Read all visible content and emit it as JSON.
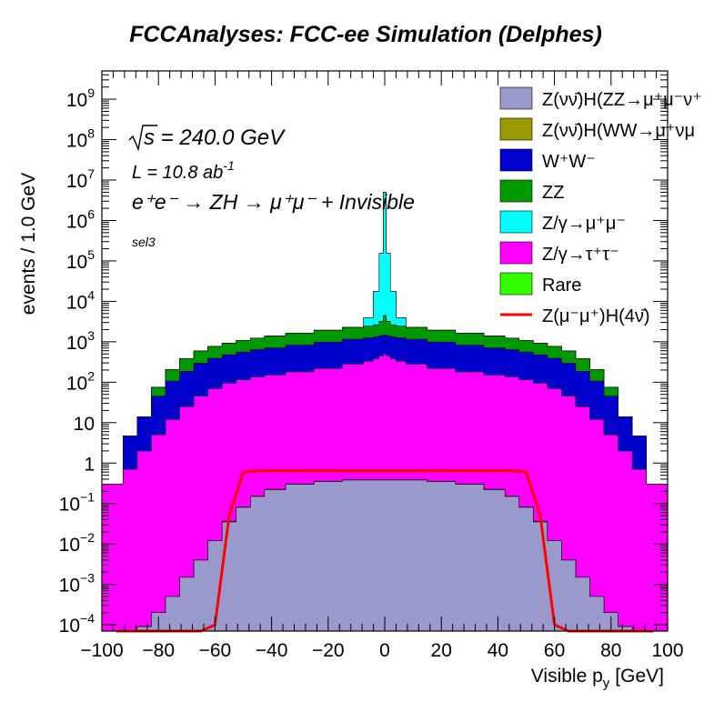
{
  "chart_data": {
    "type": "area",
    "title": "FCCAnalyses: FCC-ee Simulation (Delphes)",
    "xlabel": "Visible p",
    "xlabel_sub": "y",
    "xlabel_unit": "[GeV]",
    "ylabel": "events / 1.0 GeV",
    "xlim": [
      -100,
      100
    ],
    "ylim": [
      7e-05,
      5000000000
    ],
    "yscale": "log",
    "stacked": true,
    "legend_position": "top-right",
    "x_ticks": [
      "−100",
      "−80",
      "−60",
      "−40",
      "−20",
      "0",
      "20",
      "40",
      "60",
      "80",
      "100"
    ],
    "y_ticks": [
      {
        "value": 0.0001,
        "base": "10",
        "exp": "−4"
      },
      {
        "value": 0.001,
        "base": "10",
        "exp": "−3"
      },
      {
        "value": 0.01,
        "base": "10",
        "exp": "−2"
      },
      {
        "value": 0.1,
        "base": "10",
        "exp": "−1"
      },
      {
        "value": 1,
        "base": "1",
        "exp": ""
      },
      {
        "value": 10,
        "base": "10",
        "exp": ""
      },
      {
        "value": 100,
        "base": "10",
        "exp": "2"
      },
      {
        "value": 1000,
        "base": "10",
        "exp": "3"
      },
      {
        "value": 10000,
        "base": "10",
        "exp": "4"
      },
      {
        "value": 100000,
        "base": "10",
        "exp": "5"
      },
      {
        "value": 1000000,
        "base": "10",
        "exp": "6"
      },
      {
        "value": 10000000,
        "base": "10",
        "exp": "7"
      },
      {
        "value": 100000000,
        "base": "10",
        "exp": "8"
      },
      {
        "value": 1000000000,
        "base": "10",
        "exp": "9"
      }
    ],
    "annotations": {
      "energy": "s = 240.0 GeV",
      "lumi": "L = 10.8 ab",
      "lumi_exp": "-1",
      "process": "e⁺e⁻ → ZH → μ⁺μ⁻ + Invisible",
      "selection": "sel3"
    },
    "stack_order_bottom_to_top": [
      "ZvvH(ZZ)",
      "ZvvH(WW)",
      "Z/γ→ττ",
      "WW",
      "ZZ",
      "Z/γ→μμ",
      "Rare"
    ],
    "x": [
      -95,
      -90,
      -85,
      -80,
      -75,
      -70,
      -65,
      -60,
      -55,
      -50,
      -45,
      -40,
      -30,
      -20,
      -10,
      -5,
      -3,
      -1,
      0,
      1,
      3,
      5,
      10,
      20,
      30,
      40,
      45,
      50,
      55,
      60,
      65,
      70,
      75,
      80,
      85,
      90,
      95
    ],
    "series": [
      {
        "name": "Z(νν̄)H(ZZ→μ⁺μ⁻ν⁺ν⁻)",
        "legend_label": "Z(νν̄)H(ZZ→μ⁺μ⁻ν⁺",
        "color": "#9999cc",
        "type": "stack",
        "values": [
          0,
          0,
          9e-05,
          0.0002,
          0.0005,
          0.0015,
          0.004,
          0.012,
          0.035,
          0.08,
          0.15,
          0.22,
          0.3,
          0.35,
          0.38,
          0.38,
          0.38,
          0.38,
          0.38,
          0.38,
          0.38,
          0.38,
          0.38,
          0.35,
          0.3,
          0.22,
          0.15,
          0.08,
          0.035,
          0.012,
          0.004,
          0.0015,
          0.0005,
          0.0002,
          9e-05,
          0,
          0
        ]
      },
      {
        "name": "Z(νν̄)H(WW→μ⁺νμ⁻ν̄)",
        "legend_label": "Z(νν̄)H(WW→μ⁺νμ",
        "color": "#999900",
        "type": "stack",
        "values": [
          0,
          0,
          0,
          0,
          0,
          0,
          0,
          0,
          0.0015,
          0.002,
          0.003,
          0.004,
          0.005,
          0.006,
          0.006,
          0.007,
          0.007,
          0.007,
          0.007,
          0.007,
          0.007,
          0.007,
          0.006,
          0.006,
          0.005,
          0.004,
          0.003,
          0.002,
          0.0015,
          0,
          0,
          0,
          0,
          0,
          0,
          0,
          0
        ]
      },
      {
        "name": "Z/γ→τ⁺τ⁻",
        "legend_label": "Z/γ→τ⁺τ⁻",
        "color": "#ff00ff",
        "type": "stack",
        "values": [
          0.3,
          0.7,
          2,
          5,
          12,
          25,
          45,
          70,
          95,
          115,
          135,
          150,
          180,
          220,
          280,
          330,
          380,
          450,
          500,
          450,
          380,
          330,
          280,
          220,
          180,
          150,
          135,
          115,
          95,
          70,
          45,
          25,
          12,
          5,
          2,
          0.7,
          0.3
        ]
      },
      {
        "name": "W⁺W⁻",
        "legend_label": "W⁺W⁻",
        "color": "#0000cc",
        "type": "stack",
        "values": [
          0,
          4,
          12,
          40,
          95,
          160,
          250,
          320,
          380,
          440,
          500,
          550,
          650,
          760,
          880,
          920,
          950,
          960,
          970,
          960,
          950,
          920,
          880,
          760,
          650,
          550,
          500,
          440,
          380,
          320,
          250,
          160,
          95,
          40,
          12,
          4,
          0
        ]
      },
      {
        "name": "ZZ",
        "legend_label": "ZZ",
        "color": "#009900",
        "type": "stack",
        "values": [
          0,
          0,
          0,
          30,
          100,
          200,
          300,
          380,
          450,
          520,
          600,
          680,
          800,
          950,
          1100,
          1200,
          1300,
          1800,
          3000,
          1800,
          1300,
          1200,
          1100,
          950,
          800,
          680,
          600,
          520,
          450,
          380,
          300,
          200,
          100,
          30,
          0,
          0,
          0
        ]
      },
      {
        "name": "Z/γ→μ⁺μ⁻",
        "legend_label": "Z/γ→μ⁺μ⁻",
        "color": "#00ffff",
        "type": "stack",
        "values": [
          0,
          0,
          0,
          0,
          0,
          0,
          0,
          0,
          0,
          0,
          0,
          0,
          0,
          0,
          0,
          1500,
          15000,
          150000,
          5000000,
          150000,
          15000,
          1500,
          0,
          0,
          0,
          0,
          0,
          0,
          0,
          0,
          0,
          0,
          0,
          0,
          0,
          0,
          0
        ]
      },
      {
        "name": "Rare",
        "legend_label": "Rare",
        "color": "#33ff00",
        "type": "stack",
        "values": [
          0,
          0,
          0,
          0,
          0,
          0,
          0,
          0,
          0,
          0,
          0,
          0,
          0,
          0,
          0,
          0,
          0,
          0,
          0,
          0,
          0,
          0,
          0,
          0,
          0,
          0,
          0,
          0,
          0,
          0,
          0,
          0,
          0,
          0,
          0,
          0,
          0
        ]
      },
      {
        "name": "Z(μ⁻μ⁺)H(4ν)",
        "legend_label": "Z(μ⁻μ⁺)H(4ν̄)",
        "color": "#ff0000",
        "type": "line",
        "values": [
          0,
          0,
          0,
          0,
          0,
          0,
          0,
          0.0001,
          0.05,
          0.6,
          0.65,
          0.65,
          0.65,
          0.65,
          0.65,
          0.65,
          0.65,
          0.65,
          0.65,
          0.65,
          0.65,
          0.65,
          0.65,
          0.65,
          0.65,
          0.65,
          0.65,
          0.6,
          0.05,
          0.0001,
          0,
          0,
          0,
          0,
          0,
          0,
          0
        ]
      }
    ]
  }
}
